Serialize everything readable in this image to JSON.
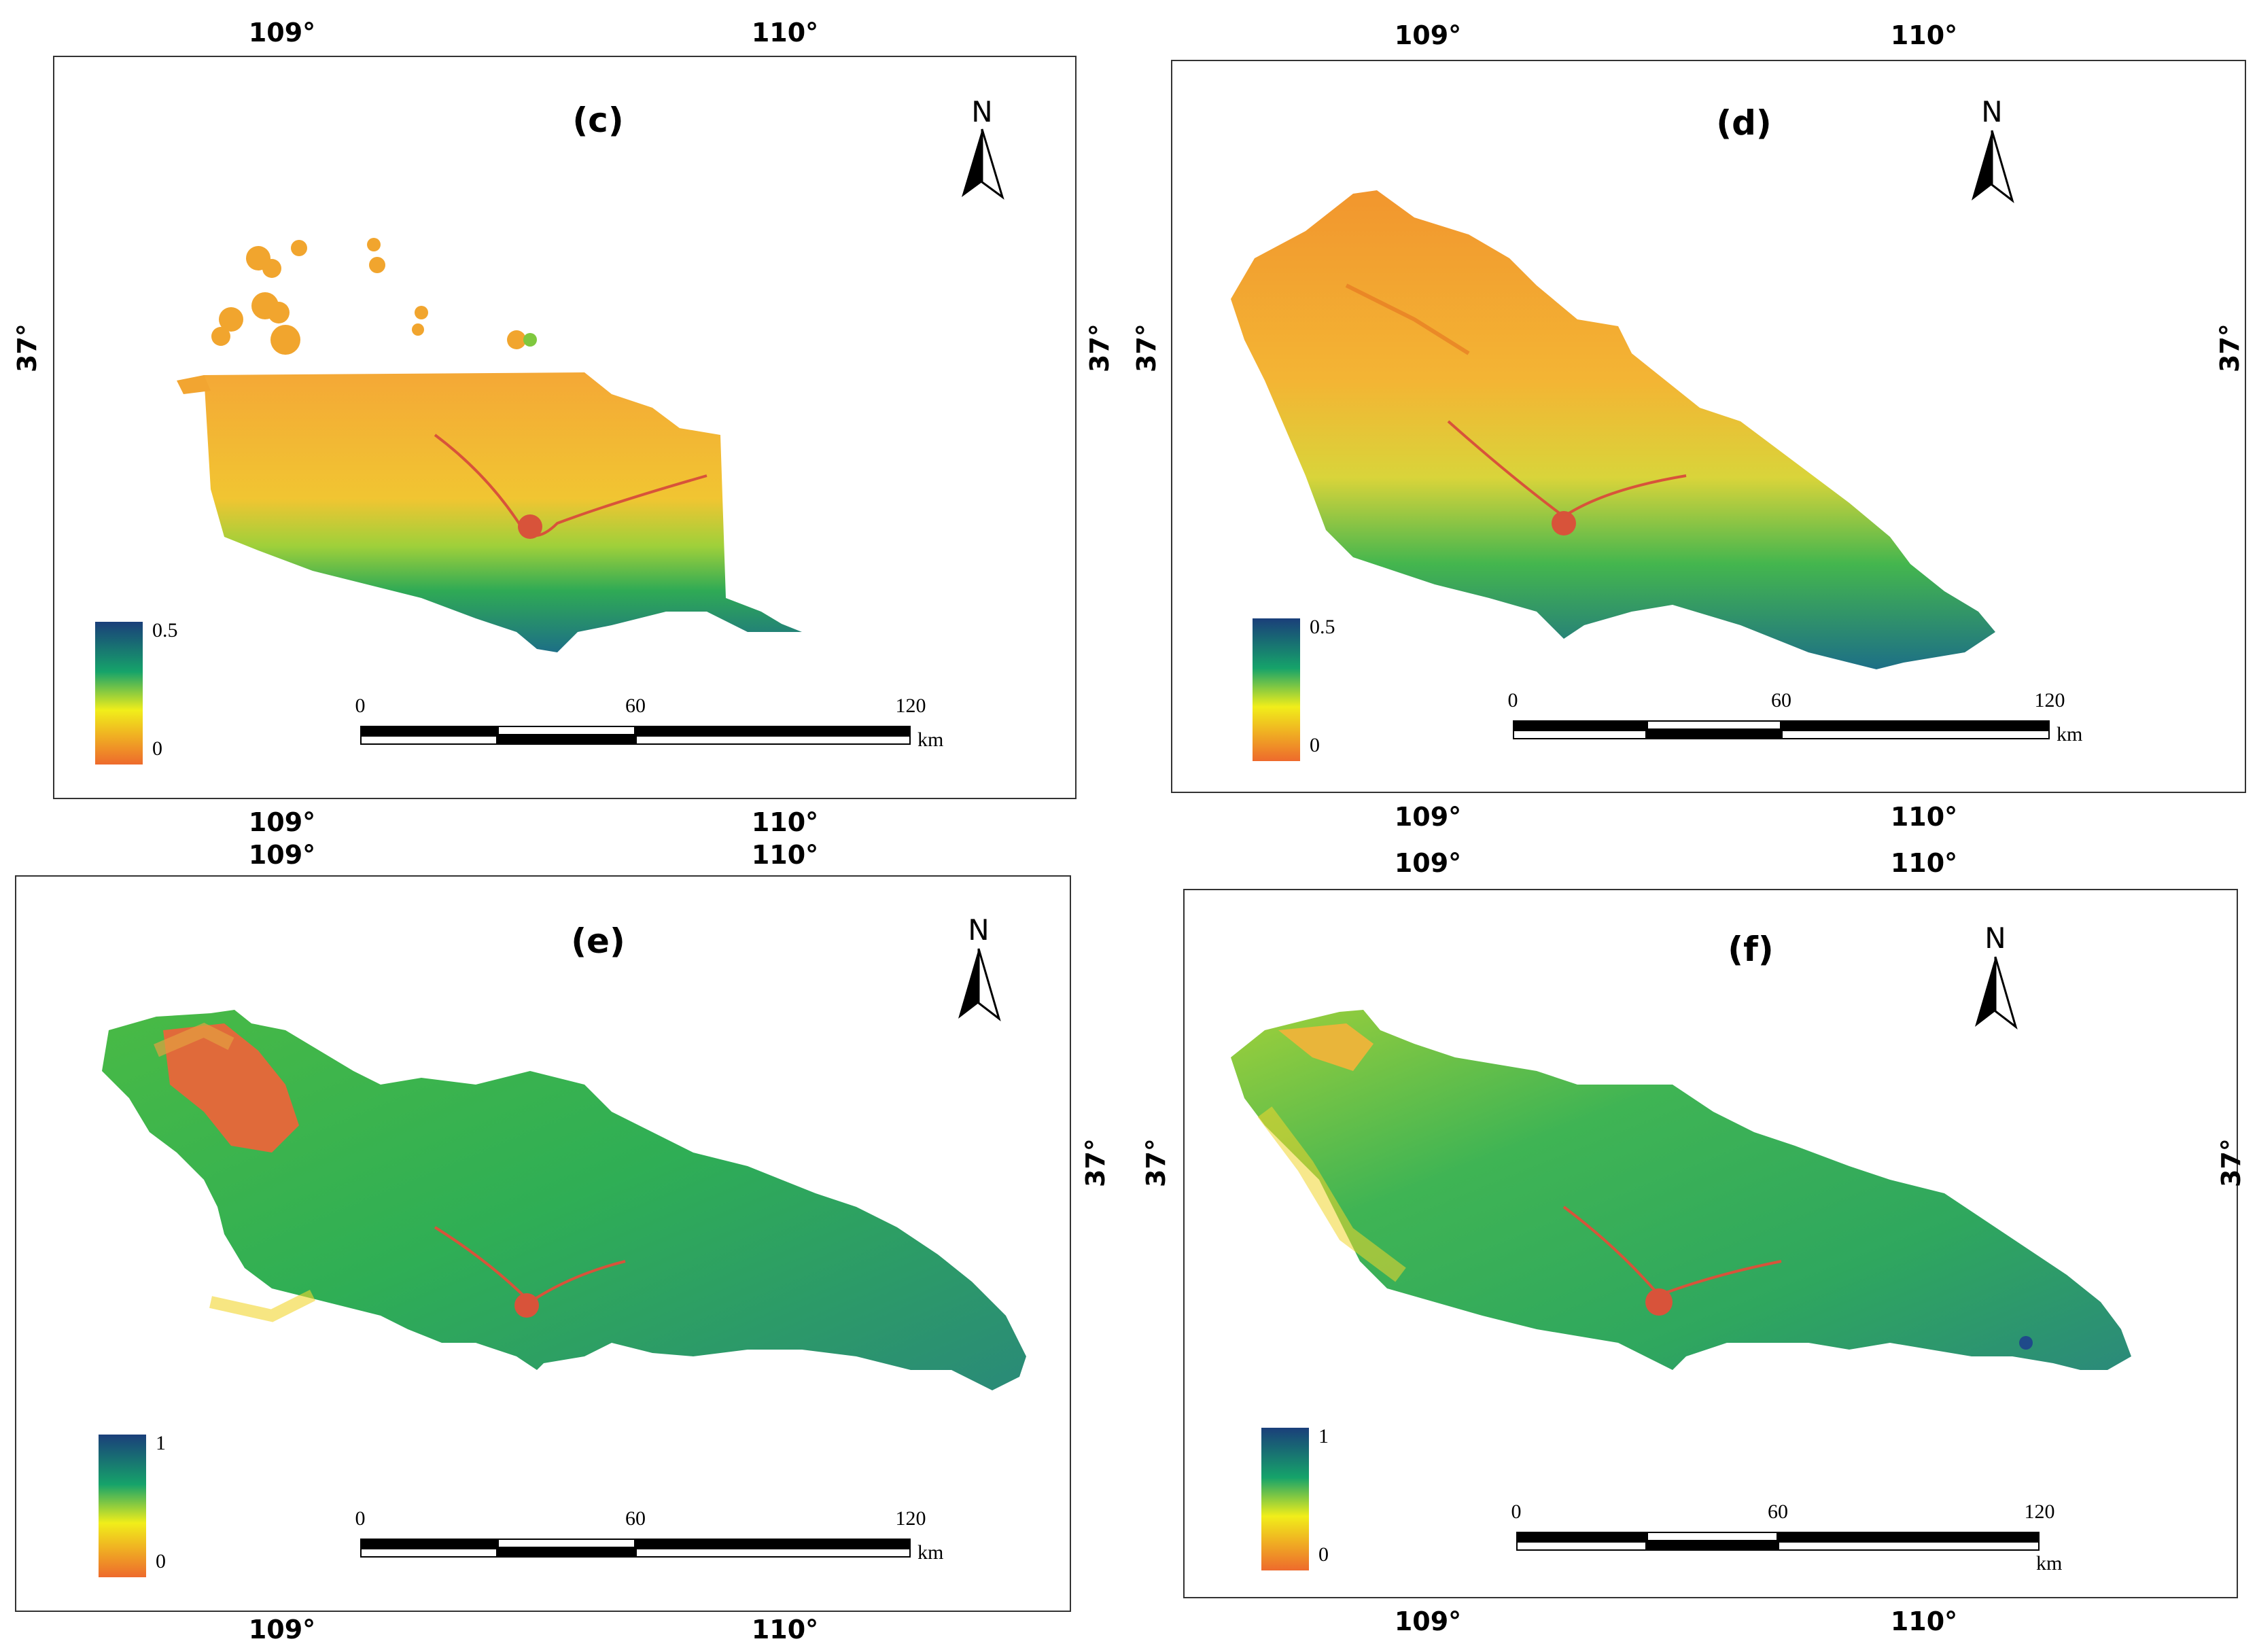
{
  "panels": [
    {
      "label": "(c)",
      "legend_max": "0.5",
      "legend_min": "0"
    },
    {
      "label": "(d)",
      "legend_max": "0.5",
      "legend_min": "0"
    },
    {
      "label": "(e)",
      "legend_max": "1",
      "legend_min": "0"
    },
    {
      "label": "(f)",
      "legend_max": "1",
      "legend_min": "0"
    }
  ],
  "lon_labels": [
    "109°",
    "110°"
  ],
  "lat_label": "37°",
  "north_letter": "N",
  "scale": {
    "ticks": [
      "0",
      "60",
      "120"
    ],
    "unit": "km"
  },
  "colors": {
    "legend_high": "#1a3f7a",
    "legend_mid_high": "#16a36a",
    "legend_mid": "#f1ee1a",
    "legend_low": "#ee6a2c",
    "map_orange": "#f2a531",
    "map_green": "#38b24a",
    "map_blue": "#1f6e8a",
    "map_red": "#d8533a"
  }
}
